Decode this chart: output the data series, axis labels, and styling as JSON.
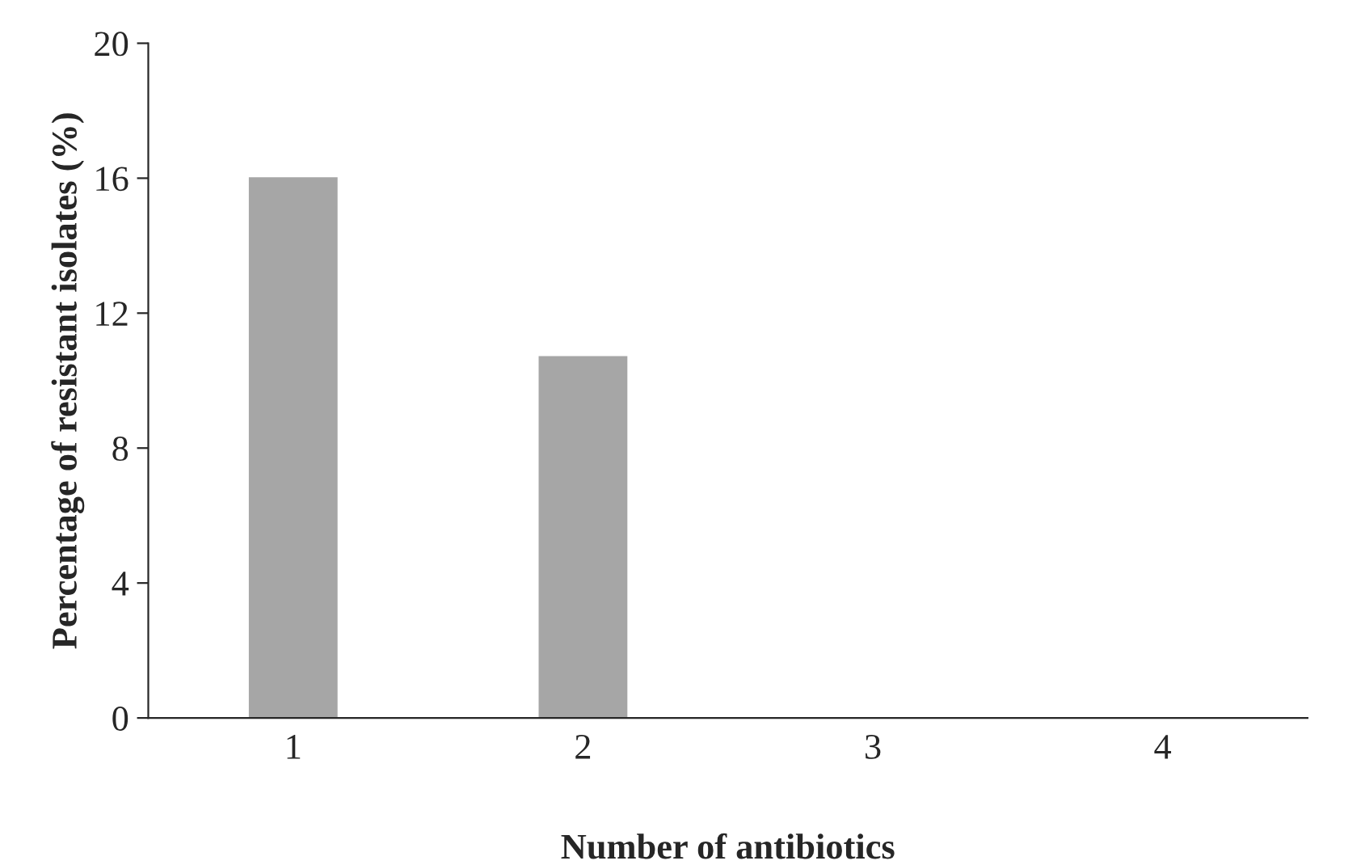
{
  "chart_data": {
    "type": "bar",
    "xlabel": "Number of antibiotics",
    "ylabel": "Percentage of resistant isolates (%)",
    "categories": [
      "1",
      "2",
      "3",
      "4"
    ],
    "values": [
      16,
      10.7,
      0,
      0
    ],
    "color": "#a6a6a6",
    "ylim": [
      0,
      20
    ],
    "yticks": [
      0,
      4,
      8,
      12,
      16,
      20
    ],
    "grid": false
  }
}
